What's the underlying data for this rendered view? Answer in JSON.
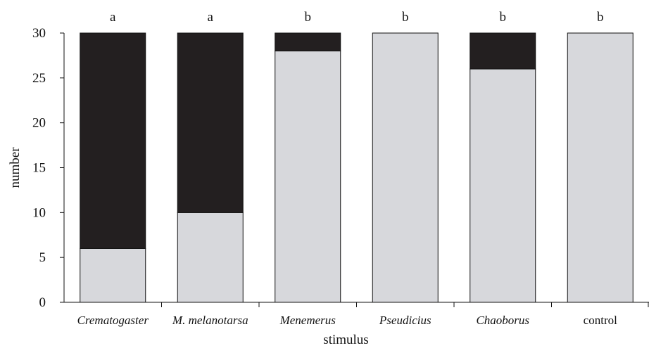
{
  "chart_data": {
    "type": "bar",
    "stacked": true,
    "categories": [
      "Crematogaster",
      "M. melanotarsa",
      "Menemerus",
      "Pseudicius",
      "Chaoborus",
      "control"
    ],
    "italic_categories": [
      true,
      true,
      true,
      true,
      true,
      false
    ],
    "significance_letters": [
      "a",
      "a",
      "b",
      "b",
      "b",
      "b"
    ],
    "series": [
      {
        "values": [
          6,
          10,
          28,
          30,
          26,
          30
        ],
        "color": "#d7d8dc"
      },
      {
        "values": [
          24,
          20,
          2,
          0,
          4,
          0
        ],
        "color": "#231f20"
      }
    ],
    "xlabel": "stimulus",
    "ylabel": "number",
    "ylim": [
      0,
      30
    ],
    "yticks": [
      0,
      5,
      10,
      15,
      20,
      25,
      30
    ],
    "grid": false,
    "legend": "none"
  }
}
